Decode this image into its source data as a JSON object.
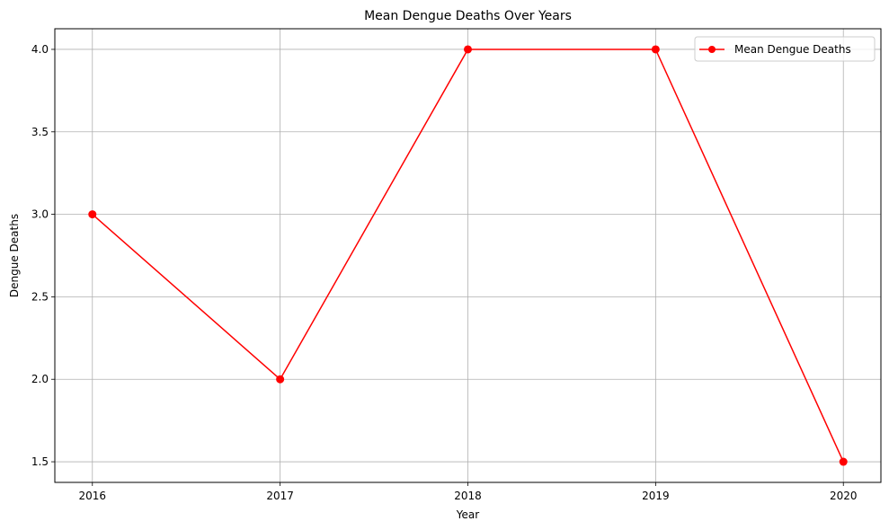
{
  "chart_data": {
    "type": "line",
    "title": "Mean Dengue Deaths Over Years",
    "xlabel": "Year",
    "ylabel": "Dengue Deaths",
    "x": [
      2016,
      2017,
      2018,
      2019,
      2020
    ],
    "x_tick_labels": [
      "2016",
      "2017",
      "2018",
      "2019",
      "2020"
    ],
    "y_ticks": [
      1.5,
      2.0,
      2.5,
      3.0,
      3.5,
      4.0
    ],
    "y_tick_labels": [
      "1.5",
      "2.0",
      "2.5",
      "3.0",
      "3.5",
      "4.0"
    ],
    "xlim": [
      2015.8,
      2020.2
    ],
    "ylim": [
      1.375,
      4.125
    ],
    "grid": true,
    "legend_position": "top-right",
    "series": [
      {
        "name": "Mean Dengue Deaths",
        "values": [
          3.0,
          2.0,
          4.0,
          4.0,
          1.5
        ],
        "color": "#ff0000",
        "marker": "circle"
      }
    ]
  }
}
